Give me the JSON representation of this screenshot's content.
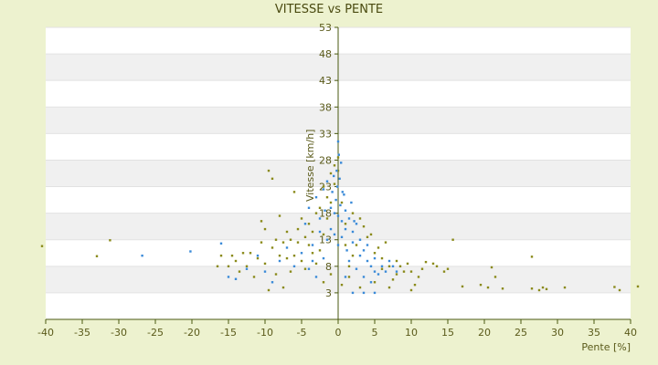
{
  "chart_data": {
    "type": "scatter",
    "title": "VITESSE vs PENTE",
    "xlabel": "Pente [%]",
    "ylabel": "Vitesse [km/h]",
    "xlim": [
      -40,
      40
    ],
    "ylim": [
      -2,
      53
    ],
    "x_ticks": [
      -40,
      -35,
      -30,
      -25,
      -20,
      -15,
      -10,
      -5,
      0,
      5,
      10,
      15,
      20,
      25,
      30,
      35,
      40
    ],
    "y_ticks": [
      3,
      8,
      13,
      18,
      23,
      28,
      33,
      38,
      43,
      48,
      53
    ],
    "grid": "horizontal alternating bands",
    "legend": "none",
    "colors": {
      "background": "#edf2cf",
      "plot_band_light": "#ffffff",
      "plot_band_dark": "#f0f0f0",
      "axis": "#4a5a10",
      "series_a": "#8a8a1a",
      "series_b": "#3a8ad8"
    },
    "series": [
      {
        "color": "#8a8a1a",
        "points": [
          [
            -40.5,
            11.8
          ],
          [
            -33.0,
            9.9
          ],
          [
            -31.2,
            12.9
          ],
          [
            41.0,
            4.2
          ],
          [
            38.5,
            3.5
          ],
          [
            37.8,
            4.1
          ],
          [
            31.0,
            4.0
          ],
          [
            28.5,
            3.7
          ],
          [
            28.0,
            4.0
          ],
          [
            27.5,
            3.5
          ],
          [
            26.5,
            3.8
          ],
          [
            26.5,
            9.8
          ],
          [
            22.5,
            3.8
          ],
          [
            21.5,
            6.0
          ],
          [
            21.0,
            7.8
          ],
          [
            20.5,
            4.0
          ],
          [
            19.5,
            4.5
          ],
          [
            17.0,
            4.2
          ],
          [
            15.7,
            13.0
          ],
          [
            15.0,
            7.5
          ],
          [
            14.5,
            7.0
          ],
          [
            13.5,
            8.0
          ],
          [
            13.0,
            8.5
          ],
          [
            12.0,
            8.8
          ],
          [
            11.5,
            7.5
          ],
          [
            11.0,
            6.0
          ],
          [
            10.5,
            4.5
          ],
          [
            10.0,
            3.5
          ],
          [
            10.0,
            7.0
          ],
          [
            9.5,
            8.5
          ],
          [
            9.0,
            7.0
          ],
          [
            8.5,
            8.0
          ],
          [
            8.0,
            9.0
          ],
          [
            8.0,
            6.5
          ],
          [
            7.5,
            5.5
          ],
          [
            7.0,
            4.0
          ],
          [
            7.0,
            8.0
          ],
          [
            6.5,
            12.5
          ],
          [
            6.0,
            7.5
          ],
          [
            6.0,
            9.5
          ],
          [
            5.5,
            11.5
          ],
          [
            5.0,
            10.5
          ],
          [
            5.0,
            5.0
          ],
          [
            4.5,
            14.0
          ],
          [
            4.0,
            13.5
          ],
          [
            3.5,
            15.5
          ],
          [
            3.0,
            17.0
          ],
          [
            2.5,
            12.0
          ],
          [
            2.0,
            18.0
          ],
          [
            2.0,
            10.0
          ],
          [
            1.5,
            8.0
          ],
          [
            1.0,
            12.0
          ],
          [
            1.0,
            16.0
          ],
          [
            0.5,
            20.0
          ],
          [
            0.0,
            26.0
          ],
          [
            0.0,
            28.5
          ],
          [
            -0.5,
            27.0
          ],
          [
            -0.5,
            23.5
          ],
          [
            -1.0,
            25.5
          ],
          [
            -1.0,
            20.0
          ],
          [
            -1.5,
            21.0
          ],
          [
            -1.5,
            17.0
          ],
          [
            -2.0,
            23.0
          ],
          [
            -2.0,
            14.0
          ],
          [
            -2.5,
            19.0
          ],
          [
            -2.5,
            11.0
          ],
          [
            -3.0,
            18.0
          ],
          [
            -3.0,
            8.5
          ],
          [
            -3.5,
            14.5
          ],
          [
            -3.5,
            10.5
          ],
          [
            -4.0,
            16.0
          ],
          [
            -4.0,
            12.0
          ],
          [
            -4.5,
            7.5
          ],
          [
            -4.5,
            13.5
          ],
          [
            -5.0,
            17.0
          ],
          [
            -5.0,
            9.0
          ],
          [
            -5.5,
            12.5
          ],
          [
            -5.5,
            15.0
          ],
          [
            -6.0,
            22.0
          ],
          [
            -6.0,
            10.0
          ],
          [
            -6.5,
            13.0
          ],
          [
            -6.5,
            7.0
          ],
          [
            -7.0,
            14.5
          ],
          [
            -7.0,
            9.5
          ],
          [
            -7.5,
            12.5
          ],
          [
            -7.5,
            4.0
          ],
          [
            -8.0,
            17.5
          ],
          [
            -8.0,
            10.0
          ],
          [
            -8.5,
            13.0
          ],
          [
            -8.5,
            6.5
          ],
          [
            -9.0,
            24.5
          ],
          [
            -9.0,
            11.5
          ],
          [
            -9.5,
            26.0
          ],
          [
            -9.5,
            3.5
          ],
          [
            -10.0,
            15.0
          ],
          [
            -10.0,
            8.5
          ],
          [
            -10.5,
            16.5
          ],
          [
            -10.5,
            12.5
          ],
          [
            -11.0,
            9.5
          ],
          [
            -11.5,
            6.0
          ],
          [
            -12.0,
            10.5
          ],
          [
            -12.5,
            8.0
          ],
          [
            -13.0,
            10.5
          ],
          [
            -13.5,
            7.0
          ],
          [
            -14.0,
            9.0
          ],
          [
            -14.5,
            10.0
          ],
          [
            -15.0,
            8.0
          ],
          [
            -16.0,
            10.0
          ],
          [
            -16.5,
            8.0
          ],
          [
            -2.0,
            5.0
          ],
          [
            -1.0,
            6.5
          ],
          [
            0.5,
            4.5
          ],
          [
            1.5,
            6.0
          ],
          [
            3.0,
            4.0
          ]
        ]
      },
      {
        "color": "#3a8ad8",
        "points": [
          [
            -26.8,
            10.0
          ],
          [
            -20.2,
            10.8
          ],
          [
            -16.0,
            12.3
          ],
          [
            -15.0,
            6.0
          ],
          [
            -14.0,
            5.6
          ],
          [
            -12.5,
            7.5
          ],
          [
            -11.0,
            10.0
          ],
          [
            -10.0,
            7.0
          ],
          [
            -9.0,
            5.0
          ],
          [
            -8.0,
            9.0
          ],
          [
            -7.0,
            11.5
          ],
          [
            -6.0,
            8.0
          ],
          [
            -5.0,
            10.5
          ],
          [
            -4.5,
            16.0
          ],
          [
            -4.0,
            19.0
          ],
          [
            -3.5,
            12.0
          ],
          [
            -3.0,
            21.0
          ],
          [
            -3.0,
            6.0
          ],
          [
            -2.5,
            17.0
          ],
          [
            -2.0,
            22.5
          ],
          [
            -2.0,
            9.5
          ],
          [
            -1.5,
            24.0
          ],
          [
            -1.5,
            13.0
          ],
          [
            -1.0,
            19.0
          ],
          [
            -1.0,
            15.0
          ],
          [
            -0.8,
            22.0
          ],
          [
            -0.5,
            18.0
          ],
          [
            -0.5,
            14.0
          ],
          [
            -0.3,
            20.5
          ],
          [
            0.0,
            31.5
          ],
          [
            0.0,
            17.5
          ],
          [
            0.0,
            12.0
          ],
          [
            0.2,
            24.5
          ],
          [
            0.3,
            19.5
          ],
          [
            0.5,
            16.5
          ],
          [
            0.5,
            13.5
          ],
          [
            0.8,
            21.5
          ],
          [
            1.0,
            18.5
          ],
          [
            1.0,
            15.0
          ],
          [
            1.2,
            11.0
          ],
          [
            1.5,
            17.0
          ],
          [
            1.5,
            9.0
          ],
          [
            2.0,
            14.5
          ],
          [
            2.0,
            12.5
          ],
          [
            2.5,
            16.0
          ],
          [
            2.5,
            7.5
          ],
          [
            3.0,
            13.0
          ],
          [
            3.0,
            10.0
          ],
          [
            3.5,
            11.0
          ],
          [
            3.5,
            6.0
          ],
          [
            4.0,
            9.0
          ],
          [
            4.0,
            12.0
          ],
          [
            4.5,
            8.0
          ],
          [
            4.5,
            5.0
          ],
          [
            5.0,
            9.5
          ],
          [
            5.0,
            7.0
          ],
          [
            5.5,
            6.5
          ],
          [
            6.0,
            8.0
          ],
          [
            6.5,
            7.0
          ],
          [
            7.0,
            9.0
          ],
          [
            7.5,
            8.0
          ],
          [
            8.0,
            7.0
          ],
          [
            5.0,
            3.0
          ],
          [
            3.5,
            3.0
          ],
          [
            2.0,
            3.0
          ],
          [
            1.0,
            6.0
          ],
          [
            -0.2,
            26.0
          ],
          [
            0.1,
            29.0
          ],
          [
            -0.1,
            23.0
          ],
          [
            0.4,
            27.5
          ],
          [
            -0.6,
            25.0
          ],
          [
            0.6,
            22.0
          ],
          [
            1.8,
            20.0
          ],
          [
            2.2,
            16.5
          ],
          [
            -1.8,
            18.5
          ],
          [
            -2.5,
            14.5
          ],
          [
            -3.5,
            9.0
          ],
          [
            -4.0,
            7.5
          ]
        ]
      }
    ]
  }
}
